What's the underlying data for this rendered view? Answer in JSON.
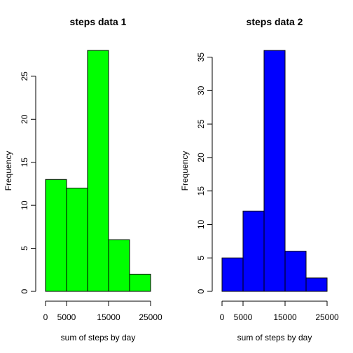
{
  "chart_data": [
    {
      "type": "bar",
      "title": "steps data 1",
      "xlabel": "sum of steps by day",
      "ylabel": "Frequency",
      "bins": [
        [
          0,
          5000
        ],
        [
          5000,
          10000
        ],
        [
          10000,
          15000
        ],
        [
          15000,
          20000
        ],
        [
          20000,
          25000
        ]
      ],
      "values": [
        13,
        12,
        28,
        6,
        2
      ],
      "xlim": [
        0,
        25000
      ],
      "ylim": [
        0,
        28
      ],
      "x_ticks": [
        0,
        5000,
        15000,
        25000
      ],
      "y_ticks": [
        0,
        5,
        10,
        15,
        20,
        25
      ],
      "color": "#00ff00"
    },
    {
      "type": "bar",
      "title": "steps data 2",
      "xlabel": "sum of steps by day",
      "ylabel": "Frequency",
      "bins": [
        [
          0,
          5000
        ],
        [
          5000,
          10000
        ],
        [
          10000,
          15000
        ],
        [
          15000,
          20000
        ],
        [
          20000,
          25000
        ]
      ],
      "values": [
        5,
        12,
        36,
        6,
        2
      ],
      "xlim": [
        0,
        25000
      ],
      "ylim": [
        0,
        36
      ],
      "x_ticks": [
        0,
        5000,
        15000,
        25000
      ],
      "y_ticks": [
        0,
        5,
        10,
        15,
        20,
        25,
        30,
        35
      ],
      "color": "#0000ff"
    }
  ]
}
